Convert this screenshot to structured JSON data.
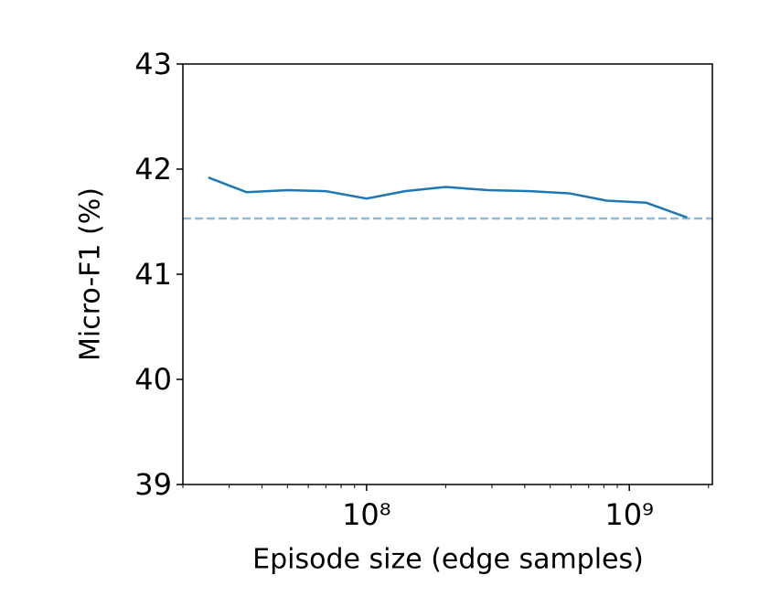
{
  "chart_data": {
    "type": "line",
    "x_label": "Episode size (edge samples)",
    "y_label": "Micro-F1 (%)",
    "x": [
      25000000,
      35000000,
      50000000,
      70000000,
      100000000,
      140000000,
      200000000,
      290000000,
      420000000,
      590000000,
      820000000,
      1160000000,
      1660000000
    ],
    "series": [
      {
        "color": "#1f77b4",
        "values": [
          41.92,
          41.78,
          41.8,
          41.79,
          41.72,
          41.79,
          41.83,
          41.8,
          41.79,
          41.77,
          41.7,
          41.68,
          41.54
        ]
      }
    ],
    "reference_line": {
      "value": 41.53,
      "color": "#8fbbd9",
      "dash": true
    },
    "x_log": true,
    "xlim": [
      20000000,
      2070000000
    ],
    "xticks": [
      {
        "value": 100000000,
        "label": "10⁸"
      },
      {
        "value": 1000000000,
        "label": "10⁹"
      }
    ],
    "xminorticks": [
      20000000,
      30000000,
      40000000,
      50000000,
      60000000,
      70000000,
      80000000,
      90000000,
      200000000,
      300000000,
      400000000,
      500000000,
      600000000,
      700000000,
      800000000,
      900000000,
      2000000000
    ],
    "ylim": [
      39,
      43
    ],
    "yticks": [
      39,
      40,
      41,
      42,
      43
    ]
  }
}
